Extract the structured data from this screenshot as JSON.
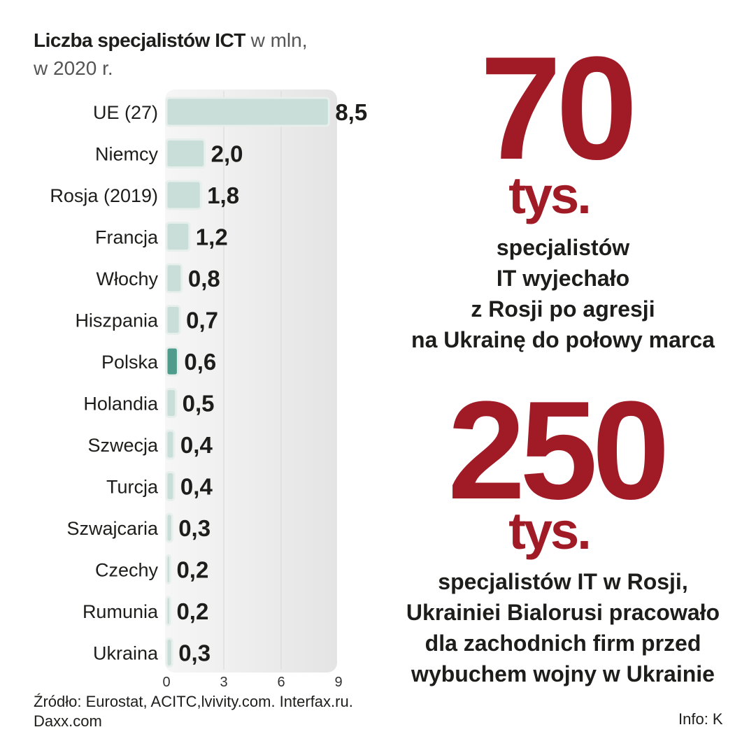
{
  "title": {
    "bold": "Liczba specjalistów ICT",
    "rest_line1": " w mln,",
    "line2": "w 2020 r."
  },
  "chart_data": {
    "type": "bar",
    "orientation": "horizontal",
    "title": "Liczba specjalistów ICT w mln, w 2020 r.",
    "categories": [
      "UE (27)",
      "Niemcy",
      "Rosja (2019)",
      "Francja",
      "Włochy",
      "Hiszpania",
      "Polska",
      "Holandia",
      "Szwecja",
      "Turcja",
      "Szwajcaria",
      "Czechy",
      "Rumunia",
      "Ukraina"
    ],
    "values": [
      8.5,
      2.0,
      1.8,
      1.2,
      0.8,
      0.7,
      0.6,
      0.5,
      0.4,
      0.4,
      0.3,
      0.2,
      0.2,
      0.3
    ],
    "value_labels": [
      "8,5",
      "2,0",
      "1,8",
      "1,2",
      "0,8",
      "0,7",
      "0,6",
      "0,5",
      "0,4",
      "0,4",
      "0,3",
      "0,2",
      "0,2",
      "0,3"
    ],
    "highlight": "Polska",
    "xlim": [
      0,
      9
    ],
    "xticks": [
      "0",
      "3",
      "6",
      "9"
    ],
    "grid": true,
    "colors": {
      "bar": "#c9ded8",
      "bar_border": "#e6efec",
      "highlight": "#4f9b8c",
      "panel": "#ececec",
      "grid": "#d8d8d8"
    }
  },
  "stat1": {
    "number": "70",
    "unit": "tys.",
    "description": [
      "specjalistów",
      "IT wyjechało",
      "z Rosji po agresji",
      "na Ukrainę do połowy marca"
    ]
  },
  "stat2": {
    "number": "250",
    "unit": "tys.",
    "description": [
      "specjalistów IT w Rosji,",
      "Ukrainiei Bialorusi pracowało",
      "dla zachodnich firm przed",
      "wybuchem wojny w Ukrainie"
    ]
  },
  "source": {
    "line1": "Źródło:  Eurostat, ACITC,lvivity.com. Interfax.ru.",
    "line2": "Daxx.com"
  },
  "credit": "Info: K",
  "accent_color": "#a11b27"
}
